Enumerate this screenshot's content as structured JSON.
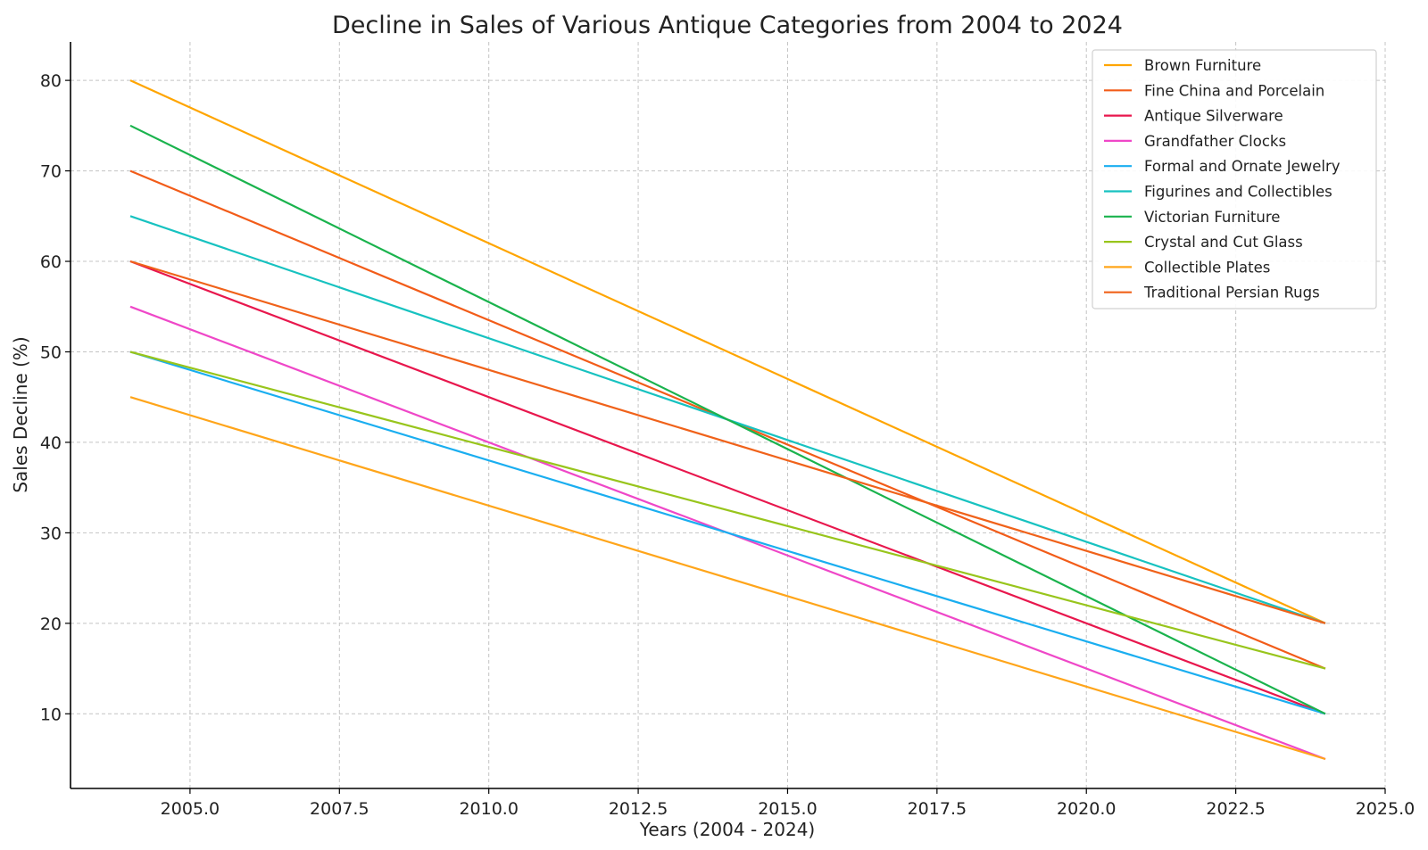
{
  "chart_data": {
    "type": "line",
    "title": "Decline in Sales of Various Antique Categories from 2004 to 2024",
    "xlabel": "Years (2004 - 2024)",
    "ylabel": "Sales Decline (%)",
    "xlim": [
      2003,
      2025
    ],
    "ylim": [
      1.75,
      84.25
    ],
    "x_ticks": [
      2005.0,
      2007.5,
      2010.0,
      2012.5,
      2015.0,
      2017.5,
      2020.0,
      2022.5,
      2025.0
    ],
    "x_tick_labels": [
      "2005.0",
      "2007.5",
      "2010.0",
      "2012.5",
      "2015.0",
      "2017.5",
      "2020.0",
      "2022.5",
      "2025.0"
    ],
    "y_ticks": [
      10,
      20,
      30,
      40,
      50,
      60,
      70,
      80
    ],
    "y_tick_labels": [
      "10",
      "20",
      "30",
      "40",
      "50",
      "60",
      "70",
      "80"
    ],
    "grid": true,
    "legend_position": "top-right",
    "x": [
      2004,
      2024
    ],
    "series": [
      {
        "name": "Brown Furniture",
        "color": "#ffa500",
        "values": [
          80,
          20
        ]
      },
      {
        "name": "Fine China and Porcelain",
        "color": "#f25c19",
        "values": [
          70,
          15
        ]
      },
      {
        "name": "Antique Silverware",
        "color": "#e8174d",
        "values": [
          60,
          10
        ]
      },
      {
        "name": "Grandfather Clocks",
        "color": "#ef47c8",
        "values": [
          55,
          5
        ]
      },
      {
        "name": "Formal and Ornate Jewelry",
        "color": "#1aaef0",
        "values": [
          50,
          10
        ]
      },
      {
        "name": "Figurines and Collectibles",
        "color": "#17c2c0",
        "values": [
          65,
          20
        ]
      },
      {
        "name": "Victorian Furniture",
        "color": "#1ab34d",
        "values": [
          75,
          10
        ]
      },
      {
        "name": "Crystal and Cut Glass",
        "color": "#98c51c",
        "values": [
          50,
          15
        ]
      },
      {
        "name": "Collectible Plates",
        "color": "#ffa51a",
        "values": [
          45,
          5
        ]
      },
      {
        "name": "Traditional Persian Rugs",
        "color": "#f0621a",
        "values": [
          60,
          20
        ]
      }
    ]
  }
}
